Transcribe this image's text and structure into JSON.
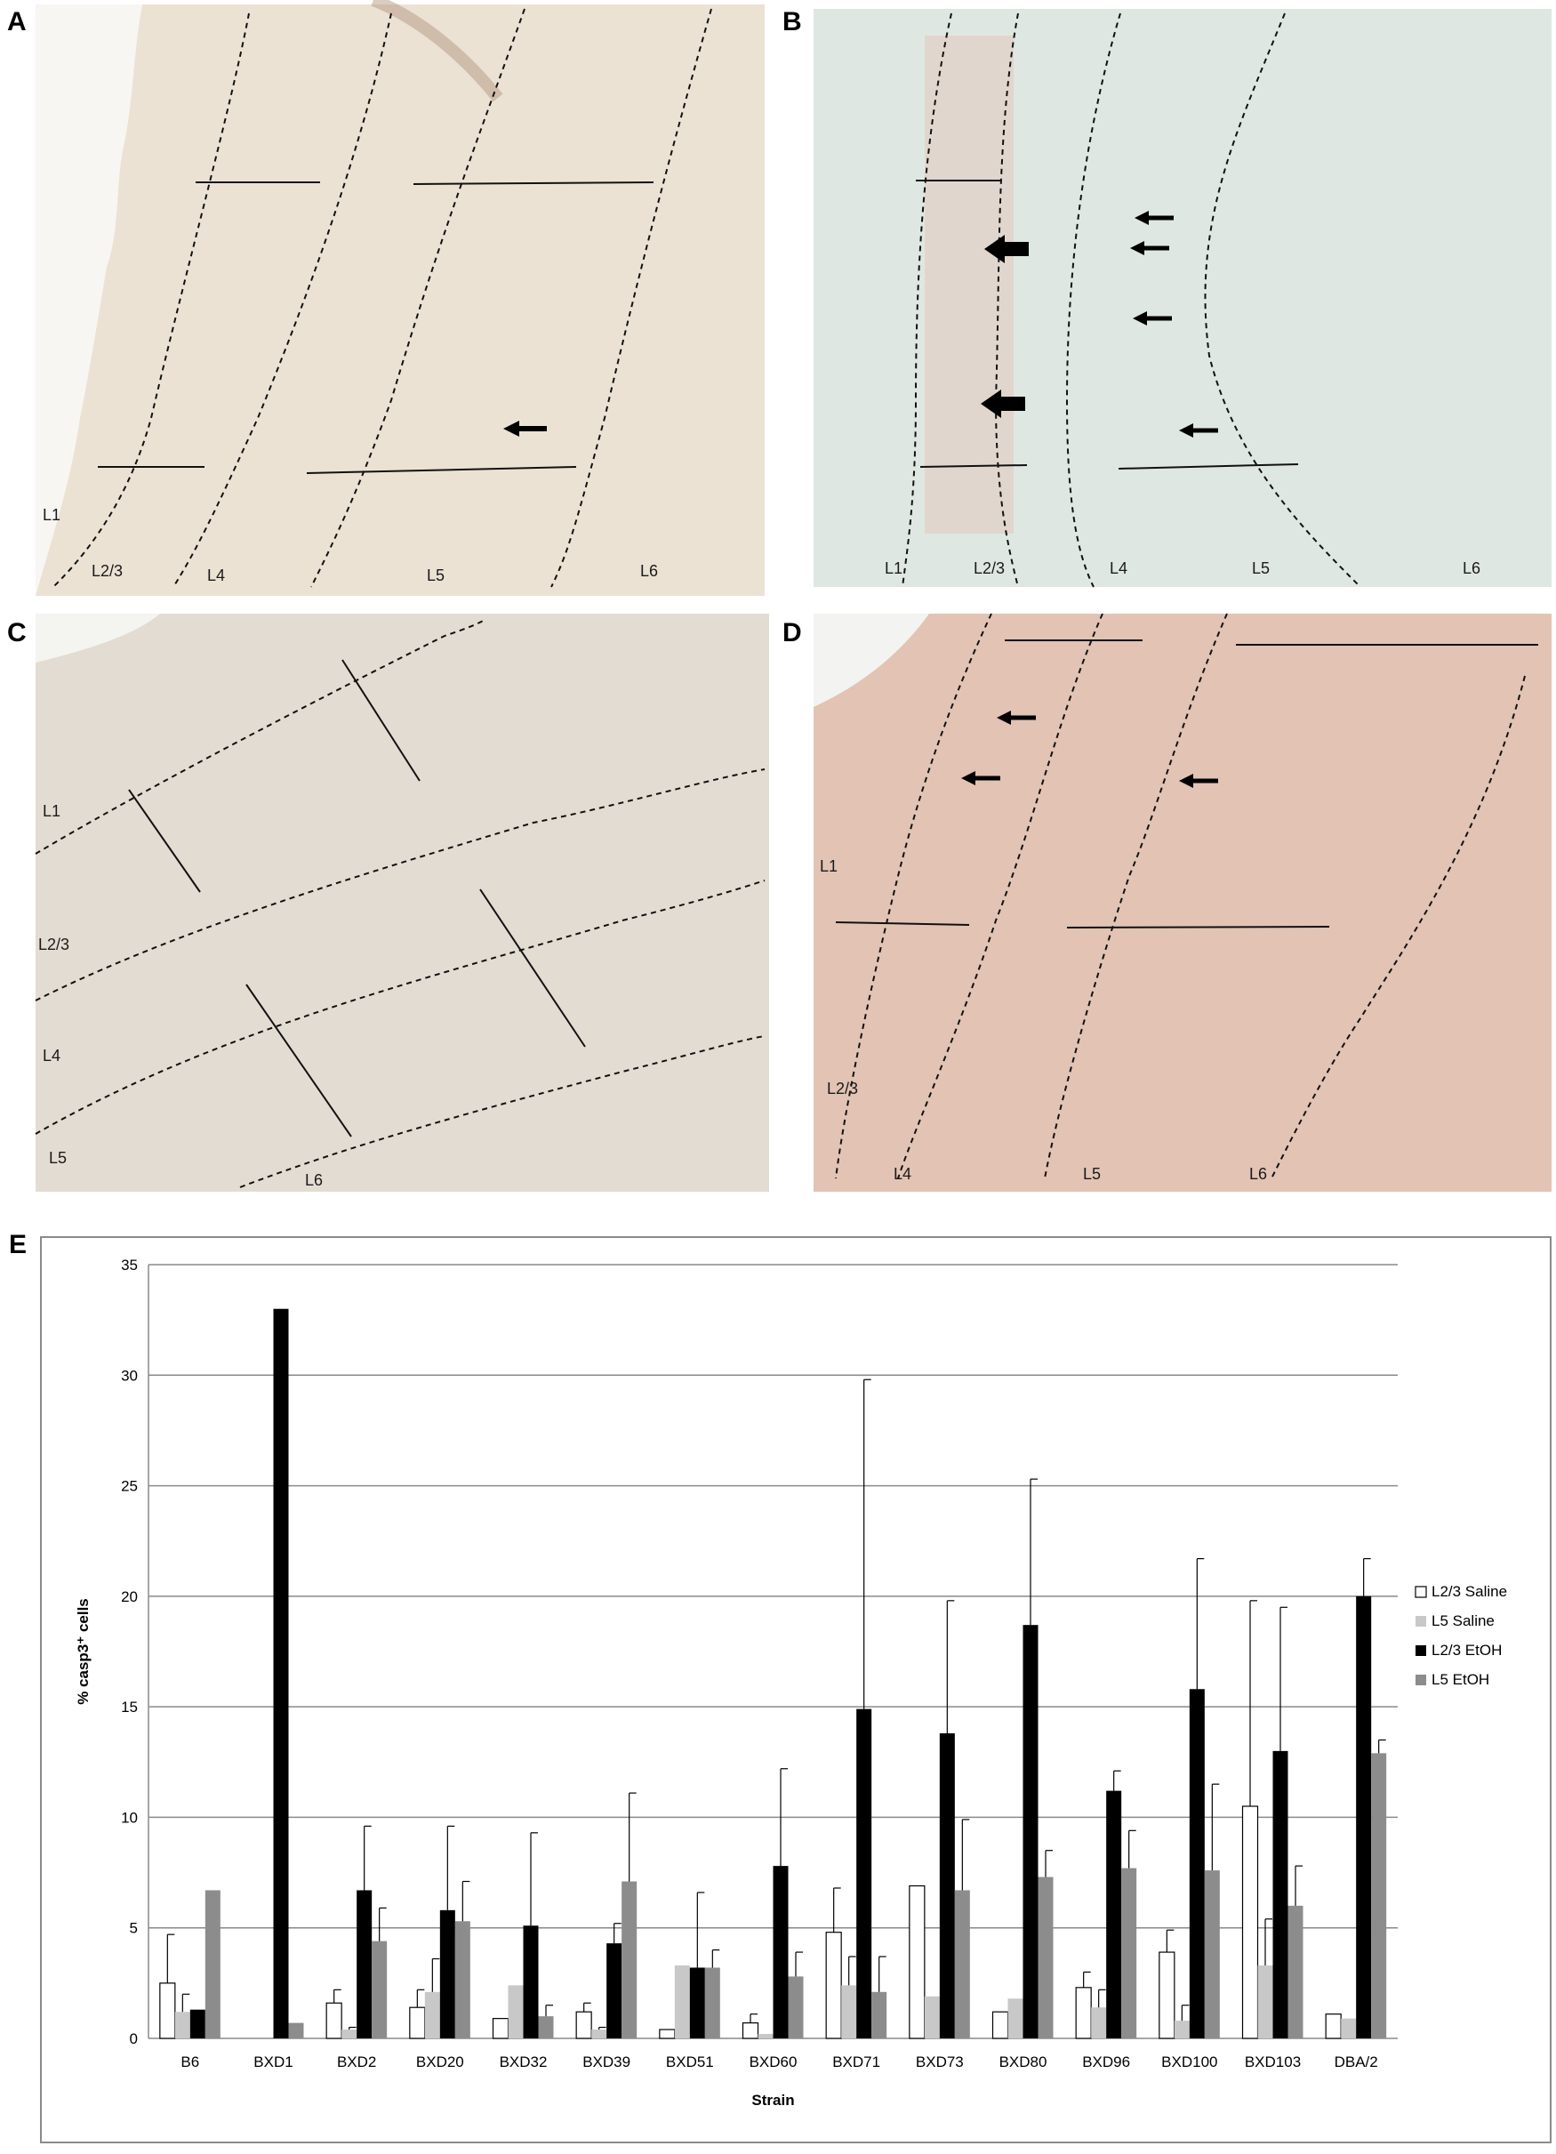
{
  "panels": [
    {
      "letter": "A",
      "bg": "#ebe2d4",
      "layers": [
        "L1",
        "L2/3",
        "L4",
        "L5",
        "L6"
      ],
      "arrows": "1 small"
    },
    {
      "letter": "B",
      "bg": "#dfe7e2",
      "layers": [
        "L1",
        "L2/3",
        "L4",
        "L5",
        "L6"
      ],
      "arrows": "2 large, 4 small"
    },
    {
      "letter": "C",
      "bg": "#e3dcd3",
      "layers": [
        "L1",
        "L2/3",
        "L4",
        "L5",
        "L6"
      ],
      "arrows": "none"
    },
    {
      "letter": "D",
      "bg": "#e2c3b4",
      "layers": [
        "L1",
        "L2/3",
        "L4",
        "L5",
        "L6"
      ],
      "arrows": "3 small"
    }
  ],
  "panel_e_letter": "E",
  "colors": {
    "l23_saline": "#ffffff",
    "l5_saline": "#c8c8c8",
    "l23_etoh": "#000000",
    "l5_etoh": "#8c8c8c",
    "gridline": "#8a8a8a"
  },
  "chart_data": {
    "type": "bar",
    "title": "",
    "xlabel": "Strain",
    "ylabel": "% casp3⁺ cells",
    "ylim": [
      0,
      35
    ],
    "yticks": [
      0,
      5,
      10,
      15,
      20,
      25,
      30,
      35
    ],
    "grid": "horizontal",
    "legend_position": "right",
    "categories": [
      "B6",
      "BXD1",
      "BXD2",
      "BXD20",
      "BXD32",
      "BXD39",
      "BXD51",
      "BXD60",
      "BXD71",
      "BXD73",
      "BXD80",
      "BXD96",
      "BXD100",
      "BXD103",
      "DBA/2"
    ],
    "series": [
      {
        "name": "L2/3 Saline",
        "values": [
          2.5,
          0,
          1.6,
          1.4,
          0.9,
          1.2,
          0.4,
          0.7,
          4.8,
          6.9,
          1.2,
          2.3,
          3.9,
          10.5,
          1.1
        ],
        "errors": [
          2.2,
          0,
          0.6,
          0.8,
          0,
          0.4,
          0,
          0.4,
          2.0,
          0,
          0,
          0.7,
          1.0,
          9.3,
          0
        ]
      },
      {
        "name": "L5 Saline",
        "values": [
          1.2,
          0,
          0.4,
          2.1,
          2.4,
          0.4,
          3.3,
          0.2,
          2.4,
          1.9,
          1.8,
          1.4,
          0.8,
          3.3,
          0.9
        ],
        "errors": [
          0.8,
          0,
          0.1,
          1.5,
          0,
          0.1,
          0,
          0,
          1.3,
          0,
          0,
          0.8,
          0.7,
          2.1,
          0
        ]
      },
      {
        "name": "L2/3 EtOH",
        "values": [
          1.3,
          33.0,
          6.7,
          5.8,
          5.1,
          4.3,
          3.2,
          7.8,
          14.9,
          13.8,
          18.7,
          11.2,
          15.8,
          13.0,
          20.0
        ],
        "errors": [
          0,
          0,
          2.9,
          3.8,
          4.2,
          0.9,
          3.4,
          4.4,
          14.9,
          6.0,
          6.6,
          0.9,
          5.9,
          6.5,
          1.7
        ]
      },
      {
        "name": "L5 EtOH",
        "values": [
          6.7,
          0.7,
          4.4,
          5.3,
          1.0,
          7.1,
          3.2,
          2.8,
          2.1,
          6.7,
          7.3,
          7.7,
          7.6,
          6.0,
          12.9
        ],
        "errors": [
          0,
          0,
          1.5,
          1.8,
          0.5,
          4.0,
          0.8,
          1.1,
          1.6,
          3.2,
          1.2,
          1.7,
          3.9,
          1.8,
          0.6
        ]
      }
    ]
  }
}
